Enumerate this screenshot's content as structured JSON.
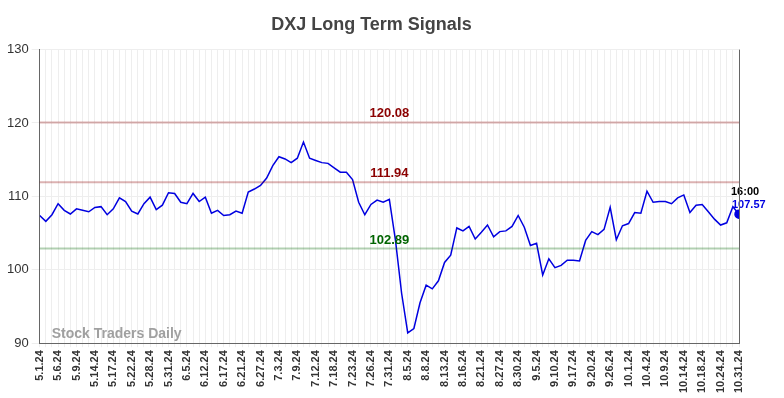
{
  "chart_data": {
    "type": "line",
    "title": "DXJ Long Term Signals",
    "categories": [
      "5.1.24",
      null,
      null,
      "5.6.24",
      null,
      null,
      "5.9.24",
      null,
      null,
      "5.14.24",
      null,
      null,
      "5.17.24",
      null,
      null,
      "5.22.24",
      null,
      null,
      "5.28.24",
      null,
      null,
      "5.31.24",
      null,
      null,
      "6.5.24",
      null,
      null,
      "6.12.24",
      null,
      null,
      "6.17.24",
      null,
      null,
      "6.21.24",
      null,
      null,
      "6.27.24",
      null,
      null,
      "7.3.24",
      null,
      null,
      "7.9.24",
      null,
      null,
      "7.12.24",
      null,
      null,
      "7.18.24",
      null,
      null,
      "7.23.24",
      null,
      null,
      "7.26.24",
      null,
      null,
      "7.31.24",
      null,
      null,
      "8.5.24",
      null,
      null,
      "8.8.24",
      null,
      null,
      "8.13.24",
      null,
      null,
      "8.16.24",
      null,
      null,
      "8.21.24",
      null,
      null,
      "8.27.24",
      null,
      null,
      "8.30.24",
      null,
      null,
      "9.5.24",
      null,
      null,
      "9.10.24",
      null,
      null,
      "9.17.24",
      null,
      null,
      "9.20.24",
      null,
      null,
      "9.26.24",
      null,
      null,
      "10.1.24",
      null,
      null,
      "10.4.24",
      null,
      null,
      "10.9.24",
      null,
      null,
      "10.14.24",
      null,
      null,
      "10.18.24",
      null,
      null,
      "10.24.24",
      null,
      null,
      "10.31.24"
    ],
    "values": [
      107.4,
      106.6,
      107.5,
      109.0,
      108.1,
      107.6,
      108.3,
      108.1,
      107.9,
      108.5,
      108.6,
      107.5,
      108.3,
      109.8,
      109.3,
      108.0,
      107.6,
      109.0,
      109.9,
      108.2,
      108.8,
      110.5,
      110.4,
      109.2,
      109.0,
      110.4,
      109.3,
      109.9,
      107.7,
      108.1,
      107.4,
      107.5,
      108.0,
      107.7,
      110.6,
      111.0,
      111.5,
      112.5,
      114.2,
      115.4,
      115.1,
      114.6,
      115.2,
      117.4,
      115.2,
      114.9,
      114.6,
      114.5,
      113.9,
      113.3,
      113.3,
      112.3,
      109.2,
      107.5,
      108.9,
      109.5,
      109.2,
      109.6,
      104.0,
      96.8,
      91.4,
      92.0,
      95.5,
      97.9,
      97.4,
      98.5,
      101.0,
      102.0,
      105.7,
      105.3,
      105.9,
      104.2,
      105.1,
      106.1,
      104.5,
      105.2,
      105.3,
      105.9,
      107.4,
      105.8,
      103.3,
      103.6,
      99.3,
      101.5,
      100.3,
      100.6,
      101.3,
      101.3,
      101.2,
      104.0,
      105.2,
      104.8,
      105.5,
      108.5,
      104.1,
      106.0,
      106.3,
      107.8,
      107.7,
      110.7,
      109.2,
      109.3,
      109.3,
      109.0,
      109.8,
      110.2,
      107.8,
      108.8,
      108.9,
      107.9,
      106.9,
      106.1,
      106.4,
      108.6,
      107.57
    ],
    "color": "#0000e0",
    "ylim": [
      90,
      130
    ],
    "yticks": [
      90,
      100,
      110,
      120,
      130
    ],
    "grid": true,
    "reference_lines": [
      {
        "value": 120.08,
        "color": "#8b0000"
      },
      {
        "value": 111.94,
        "color": "#8b0000"
      },
      {
        "value": 102.89,
        "color": "#006400"
      }
    ],
    "last_time": "16:00",
    "last_value_label": "107.57",
    "watermark": "Stock Traders Daily"
  }
}
